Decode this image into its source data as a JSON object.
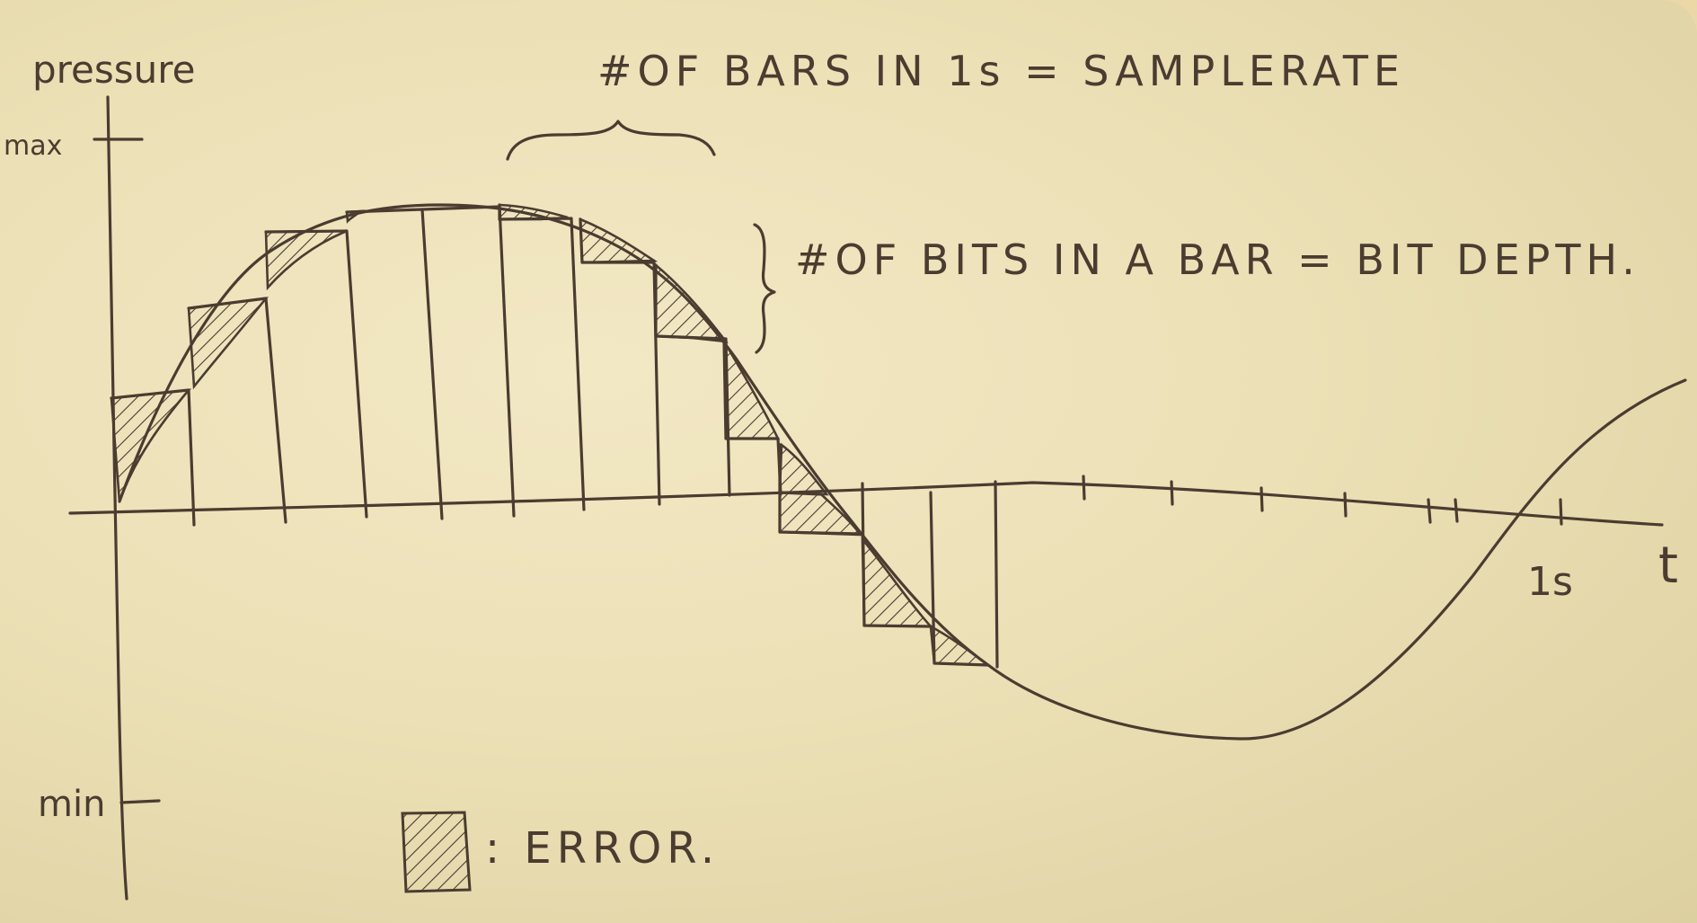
{
  "axis_labels": {
    "y_title": "pressure",
    "y_max": "max",
    "y_min": "min",
    "x_title": "t",
    "one_second": "1s"
  },
  "annotations": {
    "sample_rate": "#OF BARS IN 1s = SAMPLERATE",
    "bit_depth": "#OF BITS IN A BAR = BIT DEPTH.",
    "error_legend": ": ERROR."
  },
  "colors": {
    "ink": "#4a3c30",
    "paper": "#f0e6c0"
  }
}
